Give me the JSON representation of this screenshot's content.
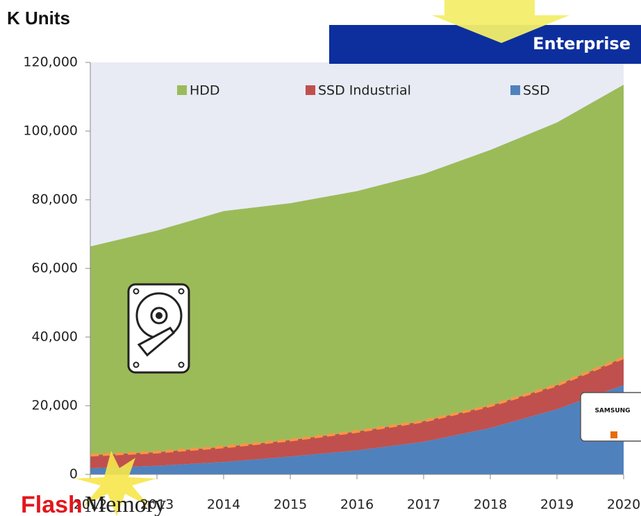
{
  "chart_data": {
    "type": "stacked_area",
    "title": "K Units",
    "annotations": [
      "Enterprise",
      "SAMSUNG",
      "Flash",
      "Memory"
    ],
    "categories": [
      "2012",
      "2013",
      "2014",
      "2015",
      "2016",
      "2017",
      "2018",
      "2019",
      "2020"
    ],
    "series": [
      {
        "name": "HDD",
        "color": "#9bbb59",
        "values": [
          60800,
          64500,
          68700,
          69000,
          70000,
          72000,
          74500,
          76500,
          79500
        ]
      },
      {
        "name": "SSD Industrial",
        "color": "#c0504d",
        "values": [
          3800,
          4000,
          4400,
          4800,
          5500,
          6000,
          6500,
          7000,
          8000
        ]
      },
      {
        "name": "SSD",
        "color": "#4f81bd",
        "values": [
          1800,
          2500,
          3600,
          5200,
          7000,
          9500,
          13500,
          19000,
          26000
        ]
      }
    ],
    "ylim": [
      0,
      120000
    ],
    "yticks": [
      0,
      {
        "value": 20000,
        "label": "20,000"
      },
      {
        "value": 40000,
        "label": "40,000"
      },
      {
        "value": 60000,
        "label": "60,000"
      },
      {
        "value": 80000,
        "label": "80,000"
      },
      {
        "value": 100000,
        "label": "100,000"
      },
      {
        "value": 120000,
        "label": "120,000"
      }
    ],
    "legend": "top"
  }
}
